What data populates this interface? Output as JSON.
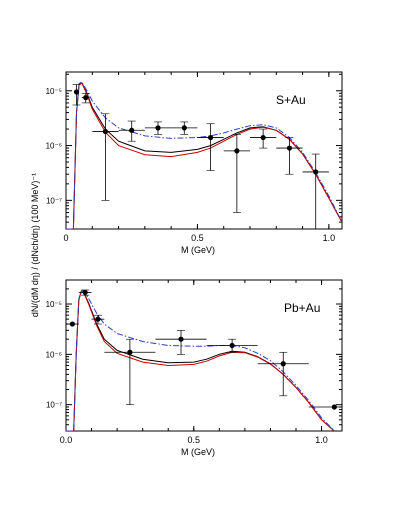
{
  "figure": {
    "shared_ylabel": "dN/(dM dη) / (dNch/dη) (100 MeV)⁻¹"
  },
  "chart_data": [
    {
      "type": "line",
      "panel_label": "S+Au",
      "xlabel": "M (GeV)",
      "ylabel": "",
      "xlim": [
        0,
        1.05
      ],
      "ylim": [
        3e-08,
        2.2e-05
      ],
      "yscale": "log",
      "grid": false,
      "x_ticks": [
        0,
        0.5,
        1.0
      ],
      "x_tick_labels": [
        "0",
        "0.5",
        "1.0"
      ],
      "y_ticks": [
        1e-07,
        1e-06,
        1e-05
      ],
      "y_tick_labels": [
        "10⁻⁷",
        "10⁻⁶",
        "10⁻⁵"
      ],
      "series": [
        {
          "color": "#000000",
          "dash": "solid",
          "x": [
            0.0,
            0.028,
            0.04,
            0.05,
            0.06,
            0.08,
            0.1,
            0.15,
            0.2,
            0.3,
            0.4,
            0.5,
            0.55,
            0.6,
            0.65,
            0.7,
            0.75,
            0.8,
            0.85,
            0.9,
            0.95,
            1.0,
            1.05
          ],
          "y": [
            3e-08,
            3e-08,
            4e-06,
            1.3e-05,
            1.4e-05,
            9e-06,
            5e-06,
            2e-06,
            1.2e-06,
            8e-07,
            7.5e-07,
            8.5e-07,
            1e-06,
            1.3e-06,
            1.7e-06,
            2.1e-06,
            2.2e-06,
            1.9e-06,
            1.3e-06,
            7e-07,
            3e-07,
            1.1e-07,
            4e-08
          ]
        },
        {
          "color": "#cc0000",
          "dash": "solid",
          "x": [
            0.0,
            0.028,
            0.04,
            0.05,
            0.06,
            0.08,
            0.1,
            0.15,
            0.2,
            0.3,
            0.4,
            0.5,
            0.55,
            0.6,
            0.65,
            0.7,
            0.75,
            0.8,
            0.85,
            0.9,
            0.95,
            1.0,
            1.05
          ],
          "y": [
            3e-08,
            3e-08,
            3.9e-06,
            1.28e-05,
            1.38e-05,
            8.6e-06,
            4.6e-06,
            1.75e-06,
            1e-06,
            6.8e-07,
            6.3e-07,
            7.5e-07,
            9e-07,
            1.2e-06,
            1.6e-06,
            2e-06,
            2.15e-06,
            1.9e-06,
            1.3e-06,
            7e-07,
            3e-07,
            1.1e-07,
            4e-08
          ]
        },
        {
          "color": "#2a3fcc",
          "dash": "dashdot",
          "x": [
            0.0,
            0.028,
            0.04,
            0.05,
            0.06,
            0.08,
            0.1,
            0.15,
            0.2,
            0.3,
            0.4,
            0.5,
            0.55,
            0.6,
            0.65,
            0.7,
            0.75,
            0.8,
            0.85,
            0.9,
            0.95,
            1.0,
            1.05
          ],
          "y": [
            3e-08,
            3e-08,
            4.1e-06,
            1.35e-05,
            1.45e-05,
            1e-05,
            6.5e-06,
            3.2e-06,
            2.1e-06,
            1.5e-06,
            1.35e-06,
            1.4e-06,
            1.5e-06,
            1.7e-06,
            2e-06,
            2.3e-06,
            2.4e-06,
            2.1e-06,
            1.4e-06,
            7.5e-07,
            3.2e-07,
            1.2e-07,
            4e-08
          ]
        }
      ],
      "points": [
        {
          "x": 0.04,
          "y": 9.5e-06,
          "xerr": 0.01,
          "ylo": 5.5e-06,
          "yhi": 1.3e-05
        },
        {
          "x": 0.075,
          "y": 7.5e-06,
          "xerr": 0.015,
          "ylo": 6e-06,
          "yhi": 9e-06
        },
        {
          "x": 0.15,
          "y": 1.8e-06,
          "xerr": 0.05,
          "ylo": 1e-07,
          "yhi": 3.8e-06
        },
        {
          "x": 0.25,
          "y": 1.9e-06,
          "xerr": 0.05,
          "ylo": 1.2e-06,
          "yhi": 2.8e-06
        },
        {
          "x": 0.35,
          "y": 2.1e-06,
          "xerr": 0.05,
          "ylo": 1.6e-06,
          "yhi": 2.7e-06
        },
        {
          "x": 0.45,
          "y": 2.1e-06,
          "xerr": 0.05,
          "ylo": 1.6e-06,
          "yhi": 2.7e-06
        },
        {
          "x": 0.55,
          "y": 1.4e-06,
          "xerr": 0.05,
          "ylo": 3.5e-07,
          "yhi": 2.5e-06
        },
        {
          "x": 0.65,
          "y": 8e-07,
          "xerr": 0.05,
          "ylo": 6e-08,
          "yhi": 1.6e-06
        },
        {
          "x": 0.75,
          "y": 1.4e-06,
          "xerr": 0.05,
          "ylo": 9e-07,
          "yhi": 2e-06
        },
        {
          "x": 0.85,
          "y": 9e-07,
          "xerr": 0.05,
          "ylo": 3e-07,
          "yhi": 1.4e-06
        },
        {
          "x": 0.95,
          "y": 3.3e-07,
          "xerr": 0.05,
          "ylo": 3e-08,
          "yhi": 7e-07
        }
      ]
    },
    {
      "type": "line",
      "panel_label": "Pb+Au",
      "xlabel": "M (GeV)",
      "ylabel": "",
      "xlim": [
        0,
        1.08
      ],
      "ylim": [
        3e-08,
        3e-05
      ],
      "yscale": "log",
      "grid": false,
      "x_ticks": [
        0,
        0.5,
        1.0
      ],
      "x_tick_labels": [
        "0.0",
        "0.5",
        "1.0"
      ],
      "y_ticks": [
        1e-07,
        1e-06,
        1e-05
      ],
      "y_tick_labels": [
        "10⁻⁷",
        "10⁻⁶",
        "10⁻⁵"
      ],
      "series": [
        {
          "color": "#000000",
          "dash": "solid",
          "x": [
            0.0,
            0.03,
            0.04,
            0.05,
            0.06,
            0.07,
            0.09,
            0.12,
            0.15,
            0.2,
            0.3,
            0.4,
            0.5,
            0.55,
            0.6,
            0.65,
            0.7,
            0.75,
            0.8,
            0.85,
            0.9,
            0.95,
            1.0,
            1.05
          ],
          "y": [
            3e-08,
            3e-08,
            1e-06,
            1.2e-05,
            1.8e-05,
            1.7e-05,
            1e-05,
            4e-06,
            2e-06,
            1.2e-06,
            8e-07,
            6.8e-07,
            7e-07,
            8e-07,
            1e-06,
            1.15e-06,
            1.1e-06,
            9e-07,
            6.5e-07,
            4e-07,
            2.2e-07,
            1.1e-07,
            5e-08,
            2.5e-08
          ]
        },
        {
          "color": "#cc0000",
          "dash": "solid",
          "x": [
            0.0,
            0.03,
            0.04,
            0.05,
            0.06,
            0.07,
            0.09,
            0.12,
            0.15,
            0.2,
            0.3,
            0.4,
            0.5,
            0.55,
            0.6,
            0.65,
            0.7,
            0.75,
            0.8,
            0.85,
            0.9,
            0.95,
            1.0,
            1.05
          ],
          "y": [
            3e-08,
            3e-08,
            1e-06,
            1.2e-05,
            1.8e-05,
            1.65e-05,
            9.5e-06,
            3.7e-06,
            1.8e-06,
            1.05e-06,
            7e-07,
            6e-07,
            6.3e-07,
            7.3e-07,
            9.3e-07,
            1.1e-06,
            1.08e-06,
            8.8e-07,
            6.4e-07,
            4e-07,
            2.2e-07,
            1.1e-07,
            5e-08,
            2.5e-08
          ]
        },
        {
          "color": "#2a3fcc",
          "dash": "dashdot",
          "x": [
            0.0,
            0.03,
            0.04,
            0.05,
            0.06,
            0.07,
            0.09,
            0.12,
            0.15,
            0.2,
            0.3,
            0.4,
            0.5,
            0.55,
            0.6,
            0.65,
            0.7,
            0.75,
            0.8,
            0.85,
            0.9,
            0.95,
            1.0,
            1.05
          ],
          "y": [
            3e-08,
            3e-08,
            1e-06,
            1.25e-05,
            1.9e-05,
            1.85e-05,
            1.25e-05,
            6.5e-06,
            4e-06,
            2.6e-06,
            1.8e-06,
            1.5e-06,
            1.45e-06,
            1.45e-06,
            1.5e-06,
            1.5e-06,
            1.35e-06,
            1.05e-06,
            7.5e-07,
            4.5e-07,
            2.4e-07,
            1.2e-07,
            5.5e-08,
            2.7e-08
          ]
        }
      ],
      "points": [
        {
          "x": 0.025,
          "y": 4e-06,
          "xerr": 0.025,
          "ylo": 4e-06,
          "yhi": 4e-06
        },
        {
          "x": 0.075,
          "y": 1.7e-05,
          "xerr": 0.025,
          "ylo": 1.5e-05,
          "yhi": 1.9e-05
        },
        {
          "x": 0.125,
          "y": 5e-06,
          "xerr": 0.025,
          "ylo": 4e-06,
          "yhi": 6e-06
        },
        {
          "x": 0.25,
          "y": 1.1e-06,
          "xerr": 0.1,
          "ylo": 1e-07,
          "yhi": 2e-06
        },
        {
          "x": 0.45,
          "y": 2e-06,
          "xerr": 0.1,
          "ylo": 1e-06,
          "yhi": 3e-06
        },
        {
          "x": 0.65,
          "y": 1.5e-06,
          "xerr": 0.1,
          "ylo": 1.1e-06,
          "yhi": 2e-06
        },
        {
          "x": 0.85,
          "y": 6.5e-07,
          "xerr": 0.1,
          "ylo": 1.5e-07,
          "yhi": 1.1e-06
        },
        {
          "x": 1.05,
          "y": 9e-08,
          "xerr": 0.1,
          "ylo": 9e-08,
          "yhi": 9e-08
        }
      ]
    }
  ]
}
